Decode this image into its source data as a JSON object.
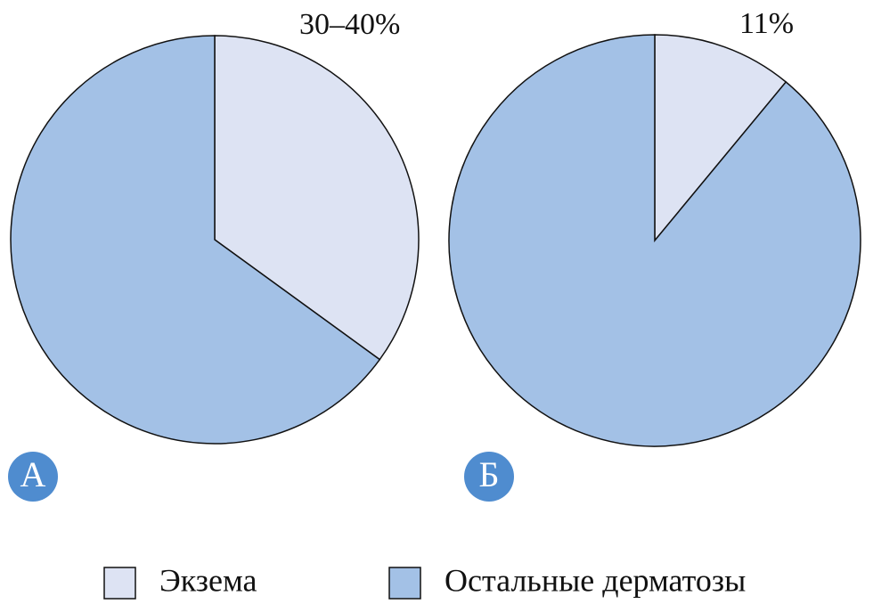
{
  "chart_data": [
    {
      "type": "pie",
      "panel": "А",
      "categories": [
        "Экзема",
        "Остальные дерматозы"
      ],
      "values": [
        35,
        65
      ],
      "value_labels": [
        "30–40%",
        null
      ],
      "colors": [
        "#dde3f3",
        "#a3c1e6"
      ]
    },
    {
      "type": "pie",
      "panel": "Б",
      "categories": [
        "Экзема",
        "Остальные дерматозы"
      ],
      "values": [
        11,
        89
      ],
      "value_labels": [
        "11%",
        null
      ],
      "colors": [
        "#dde3f3",
        "#a3c1e6"
      ]
    }
  ]
}
